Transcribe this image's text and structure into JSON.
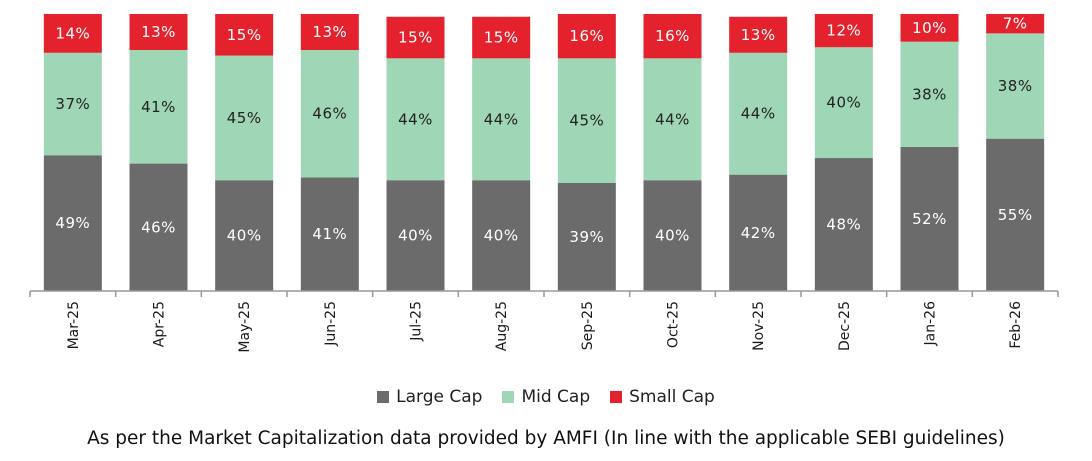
{
  "chart_data": {
    "type": "bar",
    "stacked": true,
    "categories": [
      "Mar-25",
      "Apr-25",
      "May-25",
      "Jun-25",
      "Jul-25",
      "Aug-25",
      "Sep-25",
      "Oct-25",
      "Nov-25",
      "Dec-25",
      "Jan-26",
      "Feb-26"
    ],
    "series": [
      {
        "name": "Large Cap",
        "color": "#6b6b6b",
        "label_color": "#ffffff",
        "values": [
          49,
          46,
          40,
          41,
          40,
          40,
          39,
          40,
          42,
          48,
          52,
          55
        ]
      },
      {
        "name": "Mid Cap",
        "color": "#9fd6b5",
        "label_color": "#222222",
        "values": [
          37,
          41,
          45,
          46,
          44,
          44,
          45,
          44,
          44,
          40,
          38,
          38
        ]
      },
      {
        "name": "Small Cap",
        "color": "#e3222d",
        "label_color": "#ffffff",
        "values": [
          14,
          13,
          15,
          13,
          15,
          15,
          16,
          16,
          13,
          12,
          10,
          7
        ]
      }
    ],
    "value_suffix": "%",
    "ylim": [
      0,
      100
    ],
    "title": "",
    "xlabel": "",
    "ylabel": "",
    "legend_position": "bottom"
  },
  "footnote": "As per the Market Capitalization data provided by AMFI (In line with the applicable SEBI guidelines)"
}
